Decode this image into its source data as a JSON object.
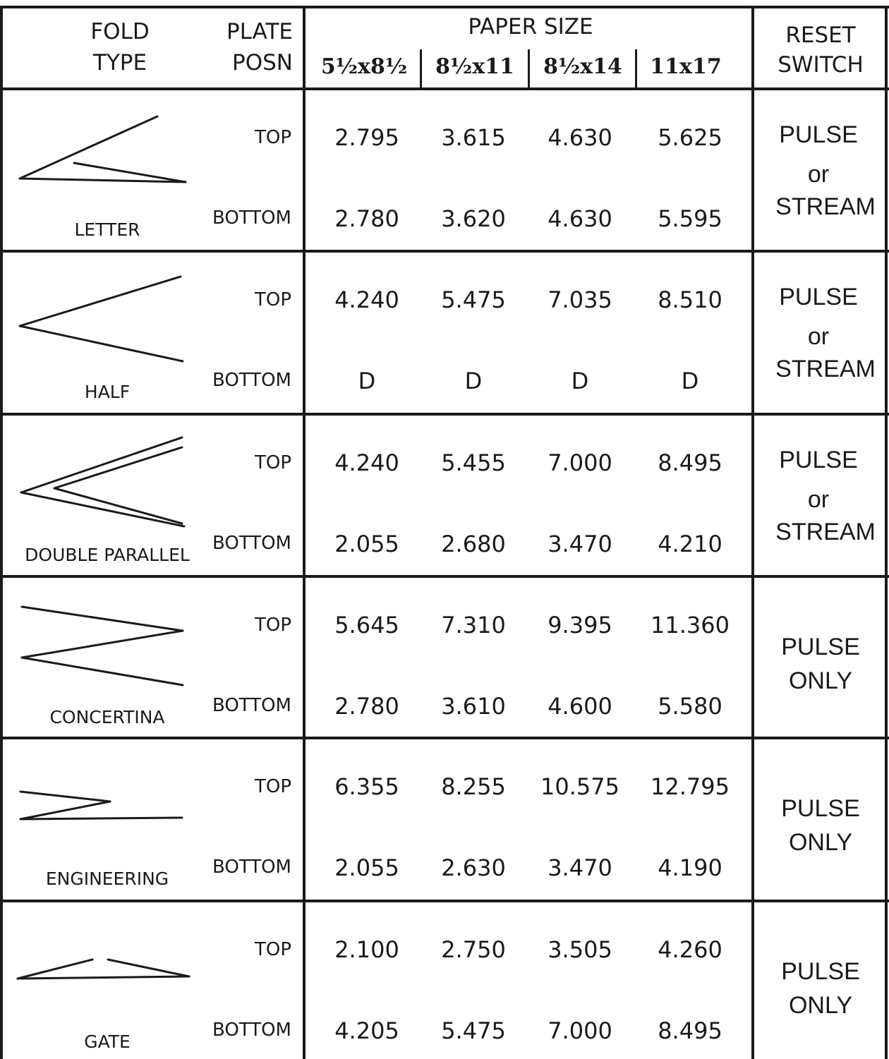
{
  "header": {
    "fold_type": [
      "FOLD",
      "TYPE"
    ],
    "plate_posn": [
      "PLATE",
      "POSN"
    ],
    "paper_size": "PAPER SIZE",
    "reset_switch": [
      "RESET",
      "SWITCH"
    ],
    "sizes": [
      "5½x8½",
      "8½x11",
      "8½x14",
      "11x17"
    ]
  },
  "rows": [
    {
      "name": "LETTER",
      "icon": "letter-fold-icon",
      "top_label": "TOP",
      "bottom_label": "BOTTOM",
      "top": [
        "2.795",
        "3.615",
        "4.630",
        "5.625"
      ],
      "bottom": [
        "2.780",
        "3.620",
        "4.630",
        "5.595"
      ],
      "switch": [
        "PULSE",
        "or",
        "STREAM"
      ]
    },
    {
      "name": "HALF",
      "icon": "half-fold-icon",
      "top_label": "TOP",
      "bottom_label": "BOTTOM",
      "top": [
        "4.240",
        "5.475",
        "7.035",
        "8.510"
      ],
      "bottom": [
        "D",
        "D",
        "D",
        "D"
      ],
      "switch": [
        "PULSE",
        "or",
        "STREAM"
      ]
    },
    {
      "name": "DOUBLE PARALLEL",
      "icon": "double-parallel-fold-icon",
      "top_label": "TOP",
      "bottom_label": "BOTTOM",
      "top": [
        "4.240",
        "5.455",
        "7.000",
        "8.495"
      ],
      "bottom": [
        "2.055",
        "2.680",
        "3.470",
        "4.210"
      ],
      "switch": [
        "PULSE",
        "or",
        "STREAM"
      ]
    },
    {
      "name": "CONCERTINA",
      "icon": "concertina-fold-icon",
      "top_label": "TOP",
      "bottom_label": "BOTTOM",
      "top": [
        "5.645",
        "7.310",
        "9.395",
        "11.360"
      ],
      "bottom": [
        "2.780",
        "3.610",
        "4.600",
        "5.580"
      ],
      "switch": [
        "PULSE",
        "ONLY"
      ]
    },
    {
      "name": "ENGINEERING",
      "icon": "engineering-fold-icon",
      "top_label": "TOP",
      "bottom_label": "BOTTOM",
      "top": [
        "6.355",
        "8.255",
        "10.575",
        "12.795"
      ],
      "bottom": [
        "2.055",
        "2.630",
        "3.470",
        "4.190"
      ],
      "switch": [
        "PULSE",
        "ONLY"
      ]
    },
    {
      "name": "GATE",
      "icon": "gate-fold-icon",
      "top_label": "TOP",
      "bottom_label": "BOTTOM",
      "top": [
        "2.100",
        "2.750",
        "3.505",
        "4.260"
      ],
      "bottom": [
        "4.205",
        "5.475",
        "7.000",
        "8.495"
      ],
      "switch": [
        "PULSE",
        "ONLY"
      ]
    }
  ]
}
